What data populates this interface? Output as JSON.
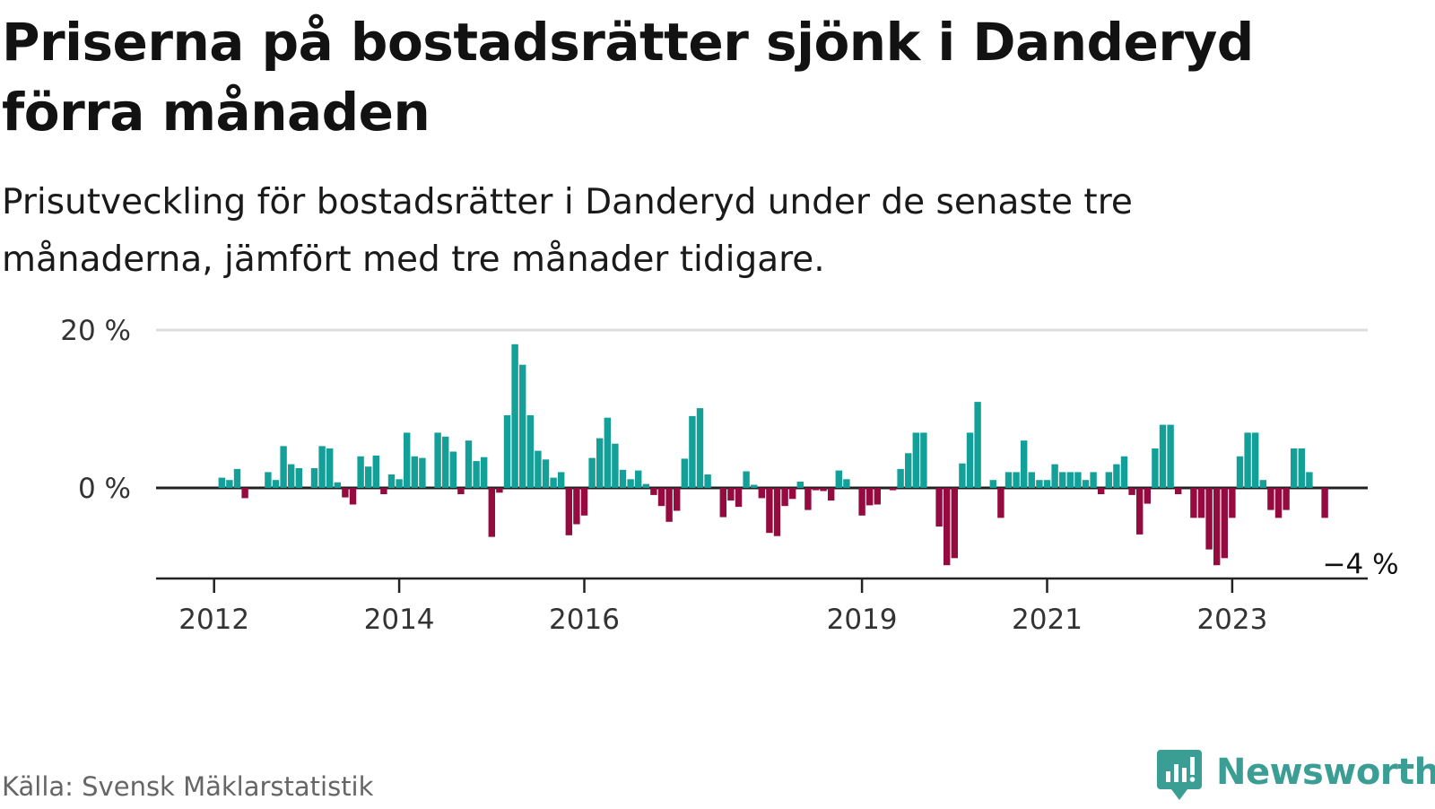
{
  "title": "Priserna på bostadsrätter sjönk i Danderyd förra månaden",
  "subtitle": "Prisutveckling för bostadsrätter i Danderyd under de senaste tre månaderna, jämfört med tre månader tidigare.",
  "source": "Källa: Svensk Mäklarstatistik",
  "brand": "Newsworthy",
  "colors": {
    "positive": "#12a099",
    "negative": "#950a3f",
    "grid": "#dddddd",
    "axis": "#222222"
  },
  "chart_data": {
    "type": "bar",
    "title": "Priserna på bostadsrätter sjönk i Danderyd förra månaden",
    "xlabel": "",
    "ylabel": "",
    "ylim": [
      -11,
      20
    ],
    "yticks": [
      0,
      20
    ],
    "ytick_labels": [
      "0 %",
      "20 %"
    ],
    "x_start": "2012-01",
    "x_tick_labels": [
      "2012",
      "2014",
      "2016",
      "2019",
      "2021",
      "2023"
    ],
    "x_tick_months": [
      0,
      24,
      48,
      84,
      108,
      132
    ],
    "last_label": "−4 %",
    "values": [
      0,
      1.3,
      1.0,
      2.4,
      -1.3,
      0,
      0,
      2.0,
      1.0,
      5.3,
      3.0,
      2.5,
      0,
      2.5,
      5.3,
      5.0,
      0.7,
      -1.2,
      -2.1,
      4.0,
      2.7,
      4.1,
      -0.8,
      1.7,
      1.1,
      7.0,
      4.0,
      3.8,
      0,
      7.0,
      6.5,
      4.6,
      -0.8,
      6.0,
      3.4,
      3.9,
      -6.2,
      -0.6,
      9.2,
      18.2,
      15.6,
      9.2,
      4.7,
      3.6,
      1.3,
      2.0,
      -6.0,
      -4.6,
      -3.5,
      3.8,
      6.3,
      8.9,
      5.6,
      2.3,
      1.1,
      2.2,
      0.5,
      -0.9,
      -2.3,
      -4.3,
      -2.9,
      3.7,
      9.1,
      10.1,
      1.7,
      0,
      -3.7,
      -1.6,
      -2.4,
      2.1,
      0.4,
      -1.3,
      -5.7,
      -6.1,
      -2.3,
      -1.4,
      0.8,
      -2.8,
      -0.3,
      -0.4,
      -1.6,
      2.2,
      1.1,
      0,
      -3.5,
      -2.2,
      -2.1,
      0,
      -0.3,
      2.4,
      4.4,
      7.0,
      7.0,
      0,
      -4.9,
      -9.8,
      -8.9,
      3.1,
      7.0,
      10.9,
      0,
      1.0,
      -3.8,
      2.0,
      2.0,
      6.0,
      2.0,
      1.0,
      1.0,
      3.0,
      2.0,
      2.0,
      2.0,
      1.0,
      2.0,
      -0.8,
      2.0,
      3.0,
      4.0,
      -0.9,
      -5.9,
      -2.0,
      5.0,
      8.0,
      8.0,
      -0.8,
      0,
      -3.8,
      -3.8,
      -7.8,
      -9.8,
      -8.9,
      -3.8,
      4.0,
      7.0,
      7.0,
      1.0,
      -2.8,
      -3.8,
      -2.8,
      5.0,
      5.0,
      2.0,
      0,
      -3.8
    ]
  }
}
